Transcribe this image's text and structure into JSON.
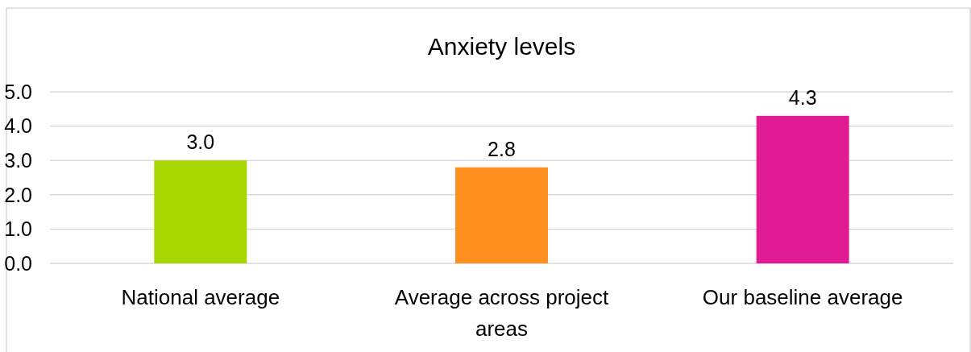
{
  "chart_data": {
    "type": "bar",
    "title": "Anxiety levels",
    "categories": [
      "National average",
      "Average across project areas",
      "Our baseline average"
    ],
    "values": [
      3.0,
      2.8,
      4.3
    ],
    "colors": [
      "#a8d600",
      "#ff9020",
      "#e01b93"
    ],
    "value_labels": [
      "3.0",
      "2.8",
      "4.3"
    ],
    "ylim": [
      0,
      5
    ],
    "yticks": [
      {
        "value": 0,
        "label": "0.0"
      },
      {
        "value": 1,
        "label": "1.0"
      },
      {
        "value": 2,
        "label": "2.0"
      },
      {
        "value": 3,
        "label": "3.0"
      },
      {
        "value": 4,
        "label": "4.0"
      },
      {
        "value": 5,
        "label": "5.0"
      }
    ],
    "grid": "y"
  }
}
